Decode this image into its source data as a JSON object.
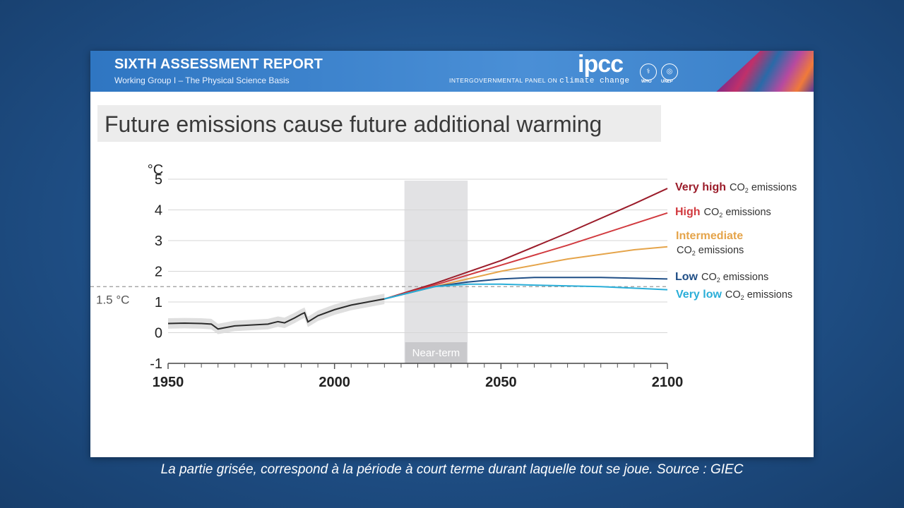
{
  "banner": {
    "title": "SIXTH ASSESSMENT REPORT",
    "subtitle": "Working Group I – The Physical Science Basis",
    "ipcc_logo": "ipcc",
    "ipcc_full_prefix": "INTERGOVERNMENTAL PANEL ON",
    "ipcc_full_suffix": "climate change",
    "who_label": "WHO",
    "unep_label": "UNEP"
  },
  "caption": "La partie grisée, correspond à la période à court terme durant laquelle tout se joue.  Source : GIEC",
  "chart_data": {
    "type": "line",
    "title": "Future emissions cause future additional warming",
    "ylabel": "°C",
    "xlabel": "",
    "xlim": [
      1950,
      2100
    ],
    "ylim": [
      -1,
      5
    ],
    "x_ticks": [
      1950,
      2000,
      2050,
      2100
    ],
    "y_ticks": [
      -1,
      0,
      1,
      2,
      3,
      4,
      5
    ],
    "grid": "horizontal",
    "reference_line": {
      "value": 1.5,
      "label": "1.5 °C"
    },
    "shaded_period": {
      "x": [
        2021,
        2040
      ],
      "label": "Near-term"
    },
    "historical": {
      "color": "#2b2b2b",
      "x": [
        1950,
        1955,
        1960,
        1963,
        1965,
        1970,
        1975,
        1980,
        1983,
        1985,
        1988,
        1990,
        1991,
        1992,
        1995,
        2000,
        2005,
        2010,
        2015
      ],
      "y": [
        0.3,
        0.31,
        0.3,
        0.28,
        0.12,
        0.22,
        0.25,
        0.28,
        0.36,
        0.32,
        0.48,
        0.6,
        0.65,
        0.35,
        0.55,
        0.75,
        0.9,
        1.0,
        1.1
      ]
    },
    "series": [
      {
        "name": "Very high",
        "color": "#9b1c2a",
        "x": [
          2015,
          2030,
          2050,
          2070,
          2090,
          2100
        ],
        "y": [
          1.1,
          1.6,
          2.35,
          3.25,
          4.2,
          4.7
        ]
      },
      {
        "name": "High",
        "color": "#d13a3f",
        "x": [
          2015,
          2030,
          2050,
          2070,
          2090,
          2100
        ],
        "y": [
          1.1,
          1.55,
          2.2,
          2.85,
          3.55,
          3.9
        ]
      },
      {
        "name": "Intermediate",
        "color": "#e5a44a",
        "x": [
          2015,
          2030,
          2050,
          2070,
          2090,
          2100
        ],
        "y": [
          1.1,
          1.5,
          2.0,
          2.4,
          2.7,
          2.8
        ]
      },
      {
        "name": "Low",
        "color": "#1f4e86",
        "x": [
          2015,
          2030,
          2040,
          2050,
          2060,
          2080,
          2100
        ],
        "y": [
          1.1,
          1.5,
          1.65,
          1.75,
          1.8,
          1.8,
          1.75
        ]
      },
      {
        "name": "Very low",
        "color": "#2aaed8",
        "x": [
          2015,
          2030,
          2040,
          2050,
          2060,
          2080,
          2100
        ],
        "y": [
          1.1,
          1.5,
          1.58,
          1.58,
          1.55,
          1.5,
          1.4
        ]
      }
    ],
    "legend": [
      {
        "strong": "Very high",
        "rest_pre": "CO",
        "rest_sub": "2",
        "rest_post": " emissions",
        "color": "#9b1c2a"
      },
      {
        "strong": "High",
        "rest_pre": "CO",
        "rest_sub": "2",
        "rest_post": " emissions",
        "color": "#d13a3f"
      },
      {
        "strong": "Intermediate",
        "rest_pre": "CO",
        "rest_sub": "2",
        "rest_post": " emissions",
        "color": "#e5a44a"
      },
      {
        "strong": "Low",
        "rest_pre": "CO",
        "rest_sub": "2",
        "rest_post": " emissions",
        "color": "#1f4e86"
      },
      {
        "strong": "Very low",
        "rest_pre": "CO",
        "rest_sub": "2",
        "rest_post": " emissions",
        "color": "#2aaed8"
      }
    ]
  }
}
